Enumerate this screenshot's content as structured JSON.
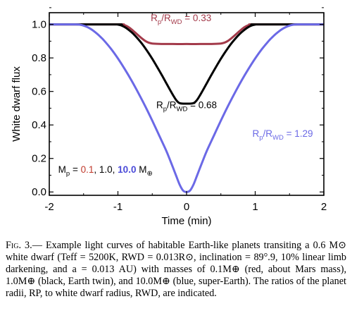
{
  "chart_data": {
    "type": "line",
    "xlabel": "Time (min)",
    "ylabel": "White dwarf flux",
    "xlim": [
      -2,
      2
    ],
    "ylim": [
      -0.02,
      1.07
    ],
    "xticks": [
      -2,
      -1,
      0,
      1,
      2
    ],
    "yticks": [
      0.0,
      0.2,
      0.4,
      0.6,
      0.8,
      1.0
    ],
    "xtick_labels": [
      "-2",
      "-1",
      "0",
      "1",
      "2"
    ],
    "ytick_labels": [
      "0.0",
      "0.2",
      "0.4",
      "0.6",
      "0.8",
      "1.0"
    ],
    "grid": false,
    "series": [
      {
        "color": "#a33a4a",
        "x": [
          -2.0,
          -1.0,
          -0.95,
          -0.9,
          -0.85,
          -0.8,
          -0.75,
          -0.7,
          -0.65,
          -0.6,
          -0.55,
          -0.5,
          -0.4,
          -0.2,
          0.0,
          0.2,
          0.4,
          0.5,
          0.55,
          0.6,
          0.65,
          0.7,
          0.75,
          0.8,
          0.85,
          0.9,
          0.95,
          1.0,
          2.0
        ],
        "y": [
          1.0,
          1.0,
          0.999,
          0.995,
          0.985,
          0.97,
          0.952,
          0.934,
          0.916,
          0.901,
          0.891,
          0.886,
          0.884,
          0.883,
          0.883,
          0.883,
          0.884,
          0.886,
          0.891,
          0.901,
          0.916,
          0.934,
          0.952,
          0.97,
          0.985,
          0.995,
          0.999,
          1.0,
          1.0
        ]
      },
      {
        "color": "#000000",
        "x": [
          -2.0,
          -1.02,
          -1.0,
          -0.95,
          -0.9,
          -0.85,
          -0.8,
          -0.75,
          -0.7,
          -0.65,
          -0.6,
          -0.55,
          -0.5,
          -0.45,
          -0.4,
          -0.35,
          -0.3,
          -0.25,
          -0.2,
          -0.15,
          -0.1,
          0.0,
          0.1,
          0.15,
          0.2,
          0.25,
          0.3,
          0.35,
          0.4,
          0.45,
          0.5,
          0.55,
          0.6,
          0.65,
          0.7,
          0.75,
          0.8,
          0.85,
          0.9,
          0.95,
          1.0,
          1.02,
          2.0
        ],
        "y": [
          1.0,
          1.0,
          0.999,
          0.994,
          0.984,
          0.97,
          0.953,
          0.933,
          0.91,
          0.885,
          0.857,
          0.827,
          0.795,
          0.761,
          0.726,
          0.69,
          0.653,
          0.616,
          0.58,
          0.548,
          0.53,
          0.527,
          0.53,
          0.548,
          0.58,
          0.616,
          0.653,
          0.69,
          0.726,
          0.761,
          0.795,
          0.827,
          0.857,
          0.885,
          0.91,
          0.933,
          0.953,
          0.97,
          0.984,
          0.994,
          0.999,
          1.0,
          1.0
        ]
      },
      {
        "color": "#6b69e6",
        "x": [
          -2.0,
          -1.62,
          -1.55,
          -1.5,
          -1.45,
          -1.4,
          -1.35,
          -1.3,
          -1.25,
          -1.2,
          -1.1,
          -1.0,
          -0.9,
          -0.8,
          -0.7,
          -0.6,
          -0.5,
          -0.4,
          -0.3,
          -0.25,
          -0.2,
          -0.15,
          -0.1,
          -0.05,
          0.0,
          0.05,
          0.1,
          0.15,
          0.2,
          0.25,
          0.3,
          0.4,
          0.5,
          0.6,
          0.7,
          0.8,
          0.9,
          1.0,
          1.1,
          1.2,
          1.25,
          1.3,
          1.35,
          1.4,
          1.45,
          1.5,
          1.55,
          1.62,
          2.0
        ],
        "y": [
          1.0,
          1.0,
          0.998,
          0.993,
          0.985,
          0.974,
          0.96,
          0.943,
          0.924,
          0.903,
          0.854,
          0.797,
          0.733,
          0.664,
          0.589,
          0.51,
          0.426,
          0.338,
          0.25,
          0.2,
          0.148,
          0.095,
          0.043,
          0.008,
          0.0,
          0.008,
          0.043,
          0.095,
          0.148,
          0.2,
          0.25,
          0.338,
          0.426,
          0.51,
          0.589,
          0.664,
          0.733,
          0.797,
          0.854,
          0.903,
          0.924,
          0.943,
          0.96,
          0.974,
          0.985,
          0.993,
          0.998,
          1.0,
          1.0
        ]
      }
    ],
    "annotations": [
      {
        "main": "R",
        "sub1": "p",
        "mid": "/R",
        "sub2": "WD",
        "tail": " = 0.33",
        "color": "#a33a4a",
        "x": -0.08,
        "y": 1.02
      },
      {
        "main": "R",
        "sub1": "p",
        "mid": "/R",
        "sub2": "WD",
        "tail": " = 0.68",
        "color": "#000000",
        "x": 0.0,
        "y": 0.5
      },
      {
        "main": "R",
        "sub1": "p",
        "mid": "/R",
        "sub2": "WD",
        "tail": " = 1.29",
        "color": "#6b69e6",
        "x": 1.4,
        "y": 0.33
      }
    ],
    "mass_legend": {
      "prefix": "M",
      "prefix_sub": "p",
      "equals": " = ",
      "values": [
        {
          "text": "0.1",
          "color": "#c0392b",
          "bold": false
        },
        {
          "text": ", 1.0, ",
          "color": "#000000",
          "bold": false
        },
        {
          "text": "10.0",
          "color": "#4b4bd8",
          "bold": true
        }
      ],
      "unit": " M",
      "unit_sub": "⊕",
      "x": -1.87,
      "y": 0.115
    }
  },
  "caption": {
    "label": "Fig. 3.",
    "body": "— Example light curves of habitable Earth-like planets transiting a 0.6 M⊙ white dwarf (Teff = 5200K, RWD = 0.013R⊙, inclination = 89°.9, 10% linear limb darkening, and a = 0.013 AU) with masses of 0.1M⊕ (red, about Mars mass), 1.0M⊕ (black, Earth twin), and 10.0M⊕ (blue, super-Earth). The ratios of the planet radii, RP, to white dwarf radius, RWD, are indicated."
  }
}
